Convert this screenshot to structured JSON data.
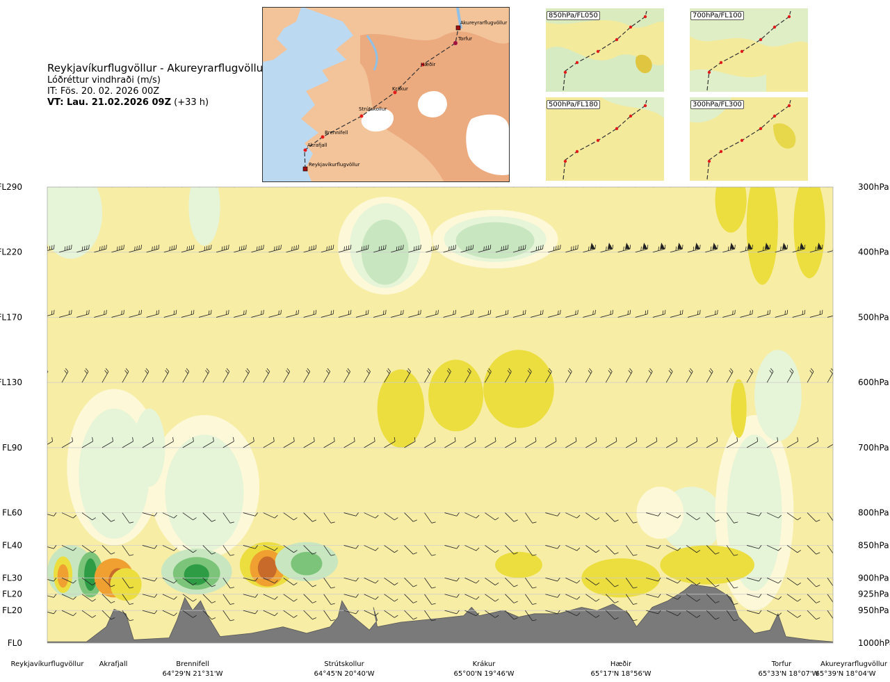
{
  "title": {
    "route": "Reykjavíkurflugvöllur - Akureyrarflugvöllur",
    "variable": "Lóðréttur vindhraði (m/s)",
    "init_time": "IT: Fös. 20. 02. 2026 00Z",
    "valid_prefix": "VT: Lau. 21.02.2026 09Z",
    "valid_suffix": "(+33 h)"
  },
  "map": {
    "places": [
      "Akureyrarflugvöllur",
      "Torfur",
      "Hæðir",
      "Krákur",
      "Strútskollur",
      "Brennifell",
      "Akrafjall",
      "Reykjavíkurflugvöllur"
    ],
    "colors": {
      "sea": "#bcd9f2",
      "land": "#f3c39a",
      "land_high": "#e8a073",
      "ice": "#ffffff",
      "route": "#333333",
      "point": "#e21b1b"
    }
  },
  "mini_maps": [
    {
      "label": "850hPa/FL050"
    },
    {
      "label": "700hPa/FL100"
    },
    {
      "label": "500hPa/FL180"
    },
    {
      "label": "300hPa/FL300"
    }
  ],
  "chart_data": {
    "type": "heatmap",
    "title": "Reykjavíkurflugvöllur - Akureyrarflugvöllur",
    "variable": "Lóðréttur vindhraði (m/s)",
    "left_axis_labels": [
      "FL290",
      "FL220",
      "FL170",
      "FL130",
      "FL90",
      "FL60",
      "FL40",
      "FL30",
      "FL20",
      "FL20",
      "FL0"
    ],
    "right_axis_labels": [
      "300hPa",
      "400hPa",
      "500hPa",
      "600hPa",
      "700hPa",
      "800hPa",
      "850hPa",
      "900hPa",
      "925hPa",
      "950hPa",
      "1000hPa"
    ],
    "pressure_levels_hPa": [
      300,
      400,
      500,
      600,
      700,
      800,
      850,
      900,
      925,
      950,
      1000
    ],
    "locations": [
      {
        "name": "Reykjavíkurflugvöllur",
        "coord": "",
        "frac": 0.0
      },
      {
        "name": "Akrafjall",
        "coord": "",
        "frac": 0.085
      },
      {
        "name": "Brennifell",
        "coord": "64°29'N 21°31'W",
        "frac": 0.187
      },
      {
        "name": "Strútskollur",
        "coord": "64°45'N 20°40'W",
        "frac": 0.378
      },
      {
        "name": "Krákur",
        "coord": "65°00'N 19°46'W",
        "frac": 0.552
      },
      {
        "name": "Hæðir",
        "coord": "65°17'N 18°56'W",
        "frac": 0.738
      },
      {
        "name": "Torfur",
        "coord": "65°33'N 18°07'W",
        "frac": 0.93
      },
      {
        "name": "Akureyrarflugvöllur",
        "coord": "65°39'N 18°04'W",
        "frac": 1.0
      }
    ],
    "colors": {
      "background": "#f7eda5",
      "weak_up": "#fdf8d8",
      "light_green": "#e6f4d8",
      "mid_green": "#c8e6c0",
      "green": "#7cc47a",
      "dark_green": "#2e9c45",
      "yellow": "#ebde3e",
      "orange": "#f0a030",
      "brown": "#c86a2a",
      "terrain": "#7a7a7a"
    }
  }
}
